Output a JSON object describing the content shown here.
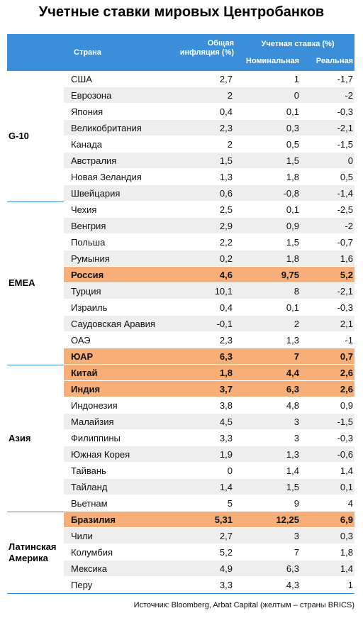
{
  "title": "Учетные ставки мировых Центробанков",
  "header": {
    "country": "Страна",
    "inflation": "Общая инфляция (%)",
    "rate": "Учетная ставка (%)",
    "nominal": "Номинальная",
    "real": "Реальная"
  },
  "groups": [
    {
      "label": "G-10",
      "rows": [
        {
          "country": "США",
          "inflation": "2,7",
          "nominal": "1",
          "real": "-1,7"
        },
        {
          "country": "Еврозона",
          "inflation": "2",
          "nominal": "0",
          "real": "-2"
        },
        {
          "country": "Япония",
          "inflation": "0,4",
          "nominal": "0,1",
          "real": "-0,3"
        },
        {
          "country": "Великобритания",
          "inflation": "2,3",
          "nominal": "0,3",
          "real": "-2,1"
        },
        {
          "country": "Канада",
          "inflation": "2",
          "nominal": "0,5",
          "real": "-1,5"
        },
        {
          "country": "Австралия",
          "inflation": "1,5",
          "nominal": "1,5",
          "real": "0"
        },
        {
          "country": "Новая Зеландия",
          "inflation": "1,3",
          "nominal": "1,8",
          "real": "0,5"
        },
        {
          "country": "Швейцария",
          "inflation": "0,6",
          "nominal": "-0,8",
          "real": "-1,4"
        }
      ]
    },
    {
      "label": "EMEA",
      "rows": [
        {
          "country": "Чехия",
          "inflation": "2,5",
          "nominal": "0,1",
          "real": "-2,5"
        },
        {
          "country": "Венгрия",
          "inflation": "2,9",
          "nominal": "0,9",
          "real": "-2"
        },
        {
          "country": "Польша",
          "inflation": "2,2",
          "nominal": "1,5",
          "real": "-0,7"
        },
        {
          "country": "Румыния",
          "inflation": "0,2",
          "nominal": "1,8",
          "real": "1,6"
        },
        {
          "country": "Россия",
          "inflation": "4,6",
          "nominal": "9,75",
          "real": "5,2",
          "highlight": true
        },
        {
          "country": "Турция",
          "inflation": "10,1",
          "nominal": "8",
          "real": "-2,1"
        },
        {
          "country": "Израиль",
          "inflation": "0,4",
          "nominal": "0,1",
          "real": "-0,3"
        },
        {
          "country": "Саудовская Аравия",
          "inflation": "-0,1",
          "nominal": "2",
          "real": "2,1"
        },
        {
          "country": "ОАЭ",
          "inflation": "2,3",
          "nominal": "1,3",
          "real": "-1"
        },
        {
          "country": "ЮАР",
          "inflation": "6,3",
          "nominal": "7",
          "real": "0,7",
          "highlight": true
        }
      ]
    },
    {
      "label": "Азия",
      "rows": [
        {
          "country": "Китай",
          "inflation": "1,8",
          "nominal": "4,4",
          "real": "2,6",
          "highlight": true
        },
        {
          "country": "Индия",
          "inflation": "3,7",
          "nominal": "6,3",
          "real": "2,6",
          "highlight": true
        },
        {
          "country": "Индонезия",
          "inflation": "3,8",
          "nominal": "4,8",
          "real": "0,9"
        },
        {
          "country": "Малайзия",
          "inflation": "4,5",
          "nominal": "3",
          "real": "-1,5"
        },
        {
          "country": "Филиппины",
          "inflation": "3,3",
          "nominal": "3",
          "real": "-0,3"
        },
        {
          "country": "Южная Корея",
          "inflation": "1,9",
          "nominal": "1,3",
          "real": "-0,6"
        },
        {
          "country": "Тайвань",
          "inflation": "0",
          "nominal": "1,4",
          "real": "1,4"
        },
        {
          "country": "Тайланд",
          "inflation": "1,4",
          "nominal": "1,5",
          "real": "0,1"
        },
        {
          "country": "Вьетнам",
          "inflation": "5",
          "nominal": "9",
          "real": "4"
        }
      ]
    },
    {
      "label": "Латинская Америка",
      "rows": [
        {
          "country": "Бразилия",
          "inflation": "5,31",
          "nominal": "12,25",
          "real": "6,9",
          "highlight": true
        },
        {
          "country": "Чили",
          "inflation": "2,7",
          "nominal": "3",
          "real": "0,3"
        },
        {
          "country": "Колумбия",
          "inflation": "5,2",
          "nominal": "7",
          "real": "1,8"
        },
        {
          "country": "Мексика",
          "inflation": "4,9",
          "nominal": "6,3",
          "real": "1,4"
        },
        {
          "country": "Перу",
          "inflation": "3,3",
          "nominal": "4,3",
          "real": "1"
        }
      ]
    }
  ],
  "source": "Источник: Bloomberg, Arbat Capital (желтым – страны BRICS)"
}
